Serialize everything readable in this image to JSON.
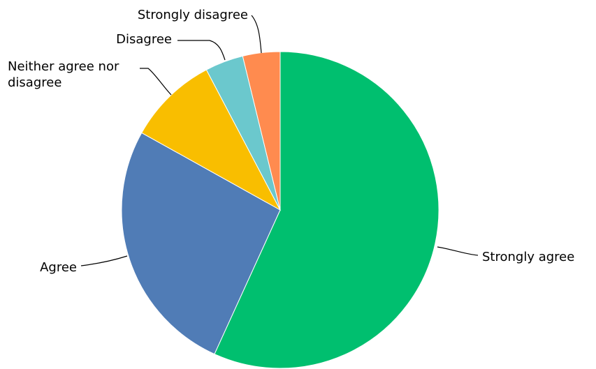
{
  "chart_data": {
    "type": "pie",
    "title": "",
    "start_angle_deg": 0,
    "direction": "clockwise",
    "slices": [
      {
        "label": "Strongly agree",
        "value": 56.8,
        "color": "#00BF6F"
      },
      {
        "label": "Agree",
        "value": 26.3,
        "color": "#507CB6"
      },
      {
        "label": "Neither agree nor disagree",
        "label_lines": [
          "Neither agree nor",
          "disagree"
        ],
        "value": 9.2,
        "color": "#F9BE00"
      },
      {
        "label": "Disagree",
        "value": 3.9,
        "color": "#6BC8CD"
      },
      {
        "label": "Strongly disagree",
        "value": 3.8,
        "color": "#FF8B4F"
      }
    ]
  }
}
